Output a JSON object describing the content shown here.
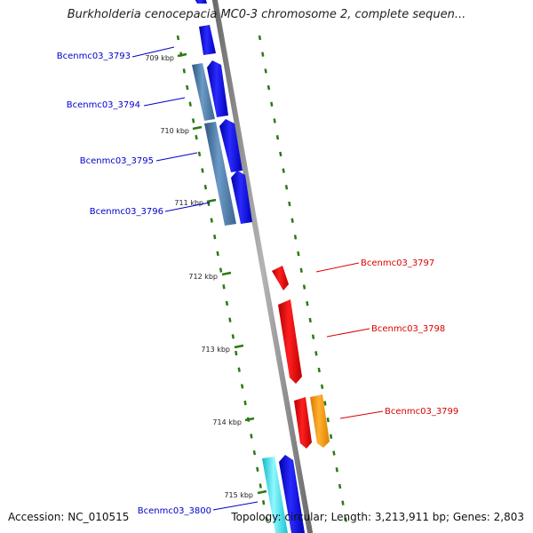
{
  "title": "Burkholderia cenocepacia MC0-3 chromosome 2, complete sequen...",
  "footer": {
    "accession": "Accession: NC_010515",
    "topology": "Topology: circular; Length: 3,213,911 bp; Genes: 2,803"
  },
  "ticks": [
    {
      "label": "709 kbp"
    },
    {
      "label": "710 kbp"
    },
    {
      "label": "711 kbp"
    },
    {
      "label": "712 kbp"
    },
    {
      "label": "713 kbp"
    },
    {
      "label": "714 kbp"
    },
    {
      "label": "715 kbp"
    }
  ],
  "genes": [
    {
      "label": "Bcenmc03_3793",
      "strand": "forward",
      "color": "#0000cc"
    },
    {
      "label": "Bcenmc03_3794",
      "strand": "forward",
      "color": "#0000cc"
    },
    {
      "label": "Bcenmc03_3795",
      "strand": "forward",
      "color": "#0000cc"
    },
    {
      "label": "Bcenmc03_3796",
      "strand": "forward",
      "color": "#0000cc"
    },
    {
      "label": "Bcenmc03_3797",
      "strand": "reverse",
      "color": "#dd0000"
    },
    {
      "label": "Bcenmc03_3798",
      "strand": "reverse",
      "color": "#dd0000"
    },
    {
      "label": "Bcenmc03_3799",
      "strand": "reverse",
      "color": "#dd0000"
    },
    {
      "label": "Bcenmc03_3800",
      "strand": "forward",
      "color": "#0000cc"
    }
  ],
  "colors": {
    "backbone": "#888888",
    "tick": "#2a7a12",
    "forward_label": "#0000cc",
    "reverse_label": "#dd0000",
    "cds_forward": "#0a0ae6",
    "cds_reverse": "#ee0000",
    "orange_feature": "#ff9a10",
    "steel_feature": "#4f7fab",
    "cyan_feature": "#22e0ee"
  }
}
